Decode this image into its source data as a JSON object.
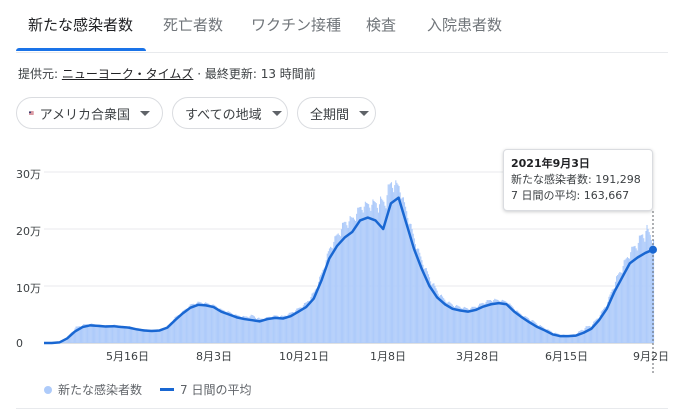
{
  "tabs": [
    {
      "label": "新たな感染者数",
      "active": true
    },
    {
      "label": "死亡者数",
      "active": false
    },
    {
      "label": "ワクチン接種",
      "active": false
    },
    {
      "label": "検査",
      "active": false
    },
    {
      "label": "入院患者数",
      "active": false
    }
  ],
  "source": {
    "prefix": "提供元: ",
    "link": "ニューヨーク・タイムズ",
    "updated": " · 最終更新: 13 時間前"
  },
  "filters": {
    "region": "アメリカ合衆国",
    "area": "すべての地域",
    "period": "全期間"
  },
  "colors": {
    "accent": "#1a73e8",
    "bars": "#aecbfa",
    "line": "#1967d2"
  },
  "tooltip": {
    "date": "2021年9月3日",
    "cases": "新たな感染者数: 191,298",
    "avg": "7 日間の平均: 163,667"
  },
  "legend": {
    "cases": "新たな感染者数",
    "avg": "7 日間の平均"
  },
  "chart_data": {
    "type": "bar",
    "ylim": [
      0,
      300000
    ],
    "yticks": [
      {
        "value": 0,
        "label": "0"
      },
      {
        "value": 100000,
        "label": "10万"
      },
      {
        "value": 200000,
        "label": "20万"
      },
      {
        "value": 300000,
        "label": "30万"
      }
    ],
    "xticks": [
      "5月16日",
      "8月3日",
      "10月21日",
      "1月8日",
      "3月28日",
      "6月15日",
      "9月2日"
    ],
    "series": [
      {
        "name": "新たな感染者数",
        "kind": "bar"
      },
      {
        "name": "7 日間の平均",
        "kind": "line"
      }
    ],
    "weeks": [
      "2020-02-28",
      "2020-03-06",
      "2020-03-13",
      "2020-03-20",
      "2020-03-27",
      "2020-04-03",
      "2020-04-10",
      "2020-04-17",
      "2020-04-24",
      "2020-05-01",
      "2020-05-08",
      "2020-05-15",
      "2020-05-22",
      "2020-05-29",
      "2020-06-05",
      "2020-06-12",
      "2020-06-19",
      "2020-06-26",
      "2020-07-03",
      "2020-07-10",
      "2020-07-17",
      "2020-07-24",
      "2020-07-31",
      "2020-08-07",
      "2020-08-14",
      "2020-08-21",
      "2020-08-28",
      "2020-09-04",
      "2020-09-11",
      "2020-09-18",
      "2020-09-25",
      "2020-10-02",
      "2020-10-09",
      "2020-10-16",
      "2020-10-23",
      "2020-10-30",
      "2020-11-06",
      "2020-11-13",
      "2020-11-20",
      "2020-11-27",
      "2020-12-04",
      "2020-12-11",
      "2020-12-18",
      "2020-12-25",
      "2021-01-01",
      "2021-01-08",
      "2021-01-15",
      "2021-01-22",
      "2021-01-29",
      "2021-02-05",
      "2021-02-12",
      "2021-02-19",
      "2021-02-26",
      "2021-03-05",
      "2021-03-12",
      "2021-03-19",
      "2021-03-26",
      "2021-04-02",
      "2021-04-09",
      "2021-04-16",
      "2021-04-23",
      "2021-04-30",
      "2021-05-07",
      "2021-05-14",
      "2021-05-21",
      "2021-05-28",
      "2021-06-04",
      "2021-06-11",
      "2021-06-18",
      "2021-06-25",
      "2021-07-02",
      "2021-07-09",
      "2021-07-16",
      "2021-07-23",
      "2021-07-30",
      "2021-08-06",
      "2021-08-13",
      "2021-08-20",
      "2021-08-27",
      "2021-09-03"
    ],
    "avg": [
      0,
      0,
      1000,
      8000,
      20000,
      28000,
      31000,
      30000,
      29000,
      29500,
      28000,
      27000,
      24000,
      22000,
      21000,
      22000,
      27000,
      40000,
      52000,
      62000,
      67000,
      66000,
      63000,
      55000,
      50000,
      45000,
      42000,
      40000,
      38000,
      42000,
      44000,
      43000,
      47000,
      55000,
      63000,
      78000,
      110000,
      148000,
      170000,
      185000,
      195000,
      215000,
      220000,
      215000,
      200000,
      245000,
      255000,
      210000,
      165000,
      130000,
      100000,
      80000,
      68000,
      60000,
      57000,
      55000,
      58000,
      64000,
      68000,
      70000,
      68000,
      55000,
      45000,
      36000,
      28000,
      22000,
      15000,
      12000,
      12000,
      13000,
      18000,
      25000,
      40000,
      60000,
      90000,
      115000,
      140000,
      150000,
      158000,
      163667
    ],
    "cases_peak": [
      0,
      0,
      1500,
      12000,
      30000,
      34000,
      35000,
      33000,
      32000,
      33000,
      31000,
      30000,
      27000,
      25000,
      24000,
      25000,
      32000,
      48000,
      58000,
      70000,
      74000,
      72000,
      68000,
      60000,
      56000,
      50000,
      48000,
      52000,
      44000,
      47000,
      50000,
      49000,
      56000,
      64000,
      75000,
      95000,
      130000,
      175000,
      200000,
      225000,
      230000,
      250000,
      255000,
      260000,
      270000,
      300000,
      285000,
      240000,
      190000,
      150000,
      120000,
      95000,
      78000,
      70000,
      66000,
      63000,
      67000,
      75000,
      80000,
      78000,
      75000,
      62000,
      50000,
      45000,
      35000,
      27000,
      20000,
      16000,
      14000,
      18000,
      30000,
      35000,
      52000,
      75000,
      115000,
      145000,
      170000,
      190000,
      220000,
      191298
    ]
  }
}
